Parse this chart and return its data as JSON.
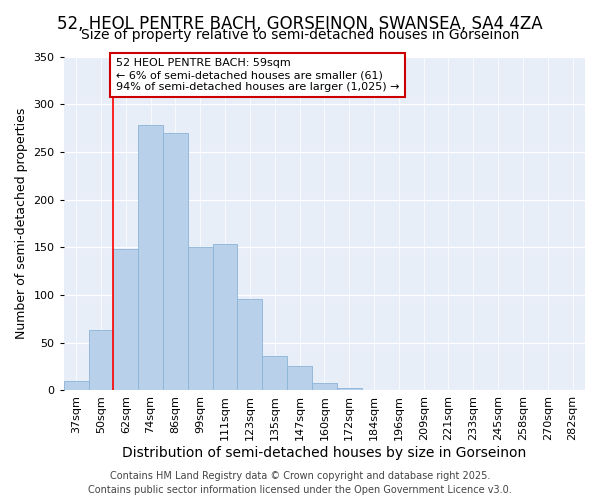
{
  "title1": "52, HEOL PENTRE BACH, GORSEINON, SWANSEA, SA4 4ZA",
  "title2": "Size of property relative to semi-detached houses in Gorseinon",
  "xlabel": "Distribution of semi-detached houses by size in Gorseinon",
  "ylabel": "Number of semi-detached properties",
  "categories": [
    "37sqm",
    "50sqm",
    "62sqm",
    "74sqm",
    "86sqm",
    "99sqm",
    "111sqm",
    "123sqm",
    "135sqm",
    "147sqm",
    "160sqm",
    "172sqm",
    "184sqm",
    "196sqm",
    "209sqm",
    "221sqm",
    "233sqm",
    "245sqm",
    "258sqm",
    "270sqm",
    "282sqm"
  ],
  "values": [
    10,
    63,
    148,
    278,
    270,
    150,
    153,
    96,
    36,
    26,
    8,
    3,
    1,
    1,
    1,
    0,
    0,
    0,
    0,
    0,
    1
  ],
  "bar_color": "#b8d0ea",
  "bar_edge_color": "#8ab4d8",
  "red_line_index": 1.5,
  "annotation_text": "52 HEOL PENTRE BACH: 59sqm\n← 6% of semi-detached houses are smaller (61)\n94% of semi-detached houses are larger (1,025) →",
  "annotation_box_color": "#ffffff",
  "annotation_box_edge": "#cc0000",
  "ylim": [
    0,
    350
  ],
  "yticks": [
    0,
    50,
    100,
    150,
    200,
    250,
    300,
    350
  ],
  "fig_bg_color": "#ffffff",
  "plot_bg_color": "#e8eef8",
  "footer_text": "Contains HM Land Registry data © Crown copyright and database right 2025.\nContains public sector information licensed under the Open Government Licence v3.0.",
  "title1_fontsize": 12,
  "title2_fontsize": 10,
  "xlabel_fontsize": 10,
  "ylabel_fontsize": 9,
  "tick_fontsize": 8,
  "footer_fontsize": 7,
  "ann_fontsize": 8
}
